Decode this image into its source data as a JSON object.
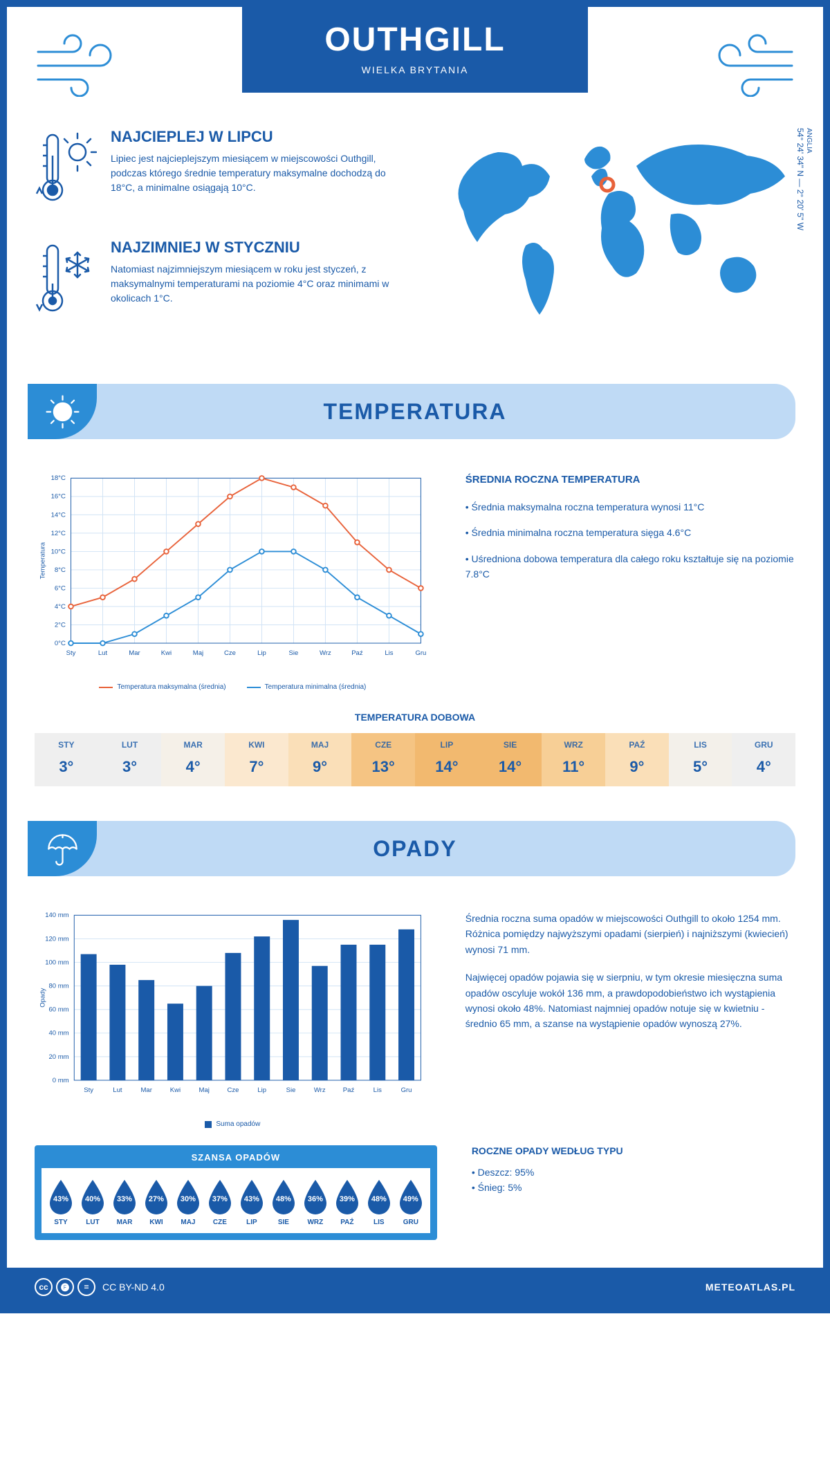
{
  "header": {
    "title": "OUTHGILL",
    "subtitle": "WIELKA BRYTANIA"
  },
  "coords": {
    "region": "ANGLIA",
    "text": "54° 24' 34\" N — 2° 20' 5\" W"
  },
  "blurbs": {
    "hot": {
      "title": "NAJCIEPLEJ W LIPCU",
      "text": "Lipiec jest najcieplejszym miesiącem w miejscowości Outhgill, podczas którego średnie temperatury maksymalne dochodzą do 18°C, a minimalne osiągają 10°C."
    },
    "cold": {
      "title": "NAJZIMNIEJ W STYCZNIU",
      "text": "Natomiast najzimniejszym miesiącem w roku jest styczeń, z maksymalnymi temperaturami na poziomie 4°C oraz minimami w okolicach 1°C."
    }
  },
  "sections": {
    "temperature": "TEMPERATURA",
    "opady": "OPADY"
  },
  "temp_chart": {
    "type": "line",
    "months": [
      "Sty",
      "Lut",
      "Mar",
      "Kwi",
      "Maj",
      "Cze",
      "Lip",
      "Sie",
      "Wrz",
      "Paź",
      "Lis",
      "Gru"
    ],
    "ylabel": "Temperatura",
    "ylim": [
      0,
      18
    ],
    "ytick_step": 2,
    "ytick_suffix": "°C",
    "series": {
      "max": {
        "label": "Temperatura maksymalna (średnia)",
        "color": "#e8623a",
        "values": [
          4,
          5,
          7,
          10,
          13,
          16,
          18,
          17,
          15,
          11,
          8,
          6
        ]
      },
      "min": {
        "label": "Temperatura minimalna (średnia)",
        "color": "#2c8dd6",
        "values": [
          0,
          0,
          1,
          3,
          5,
          8,
          10,
          10,
          8,
          5,
          3,
          1
        ]
      }
    },
    "grid_color": "#d0e3f5",
    "background": "#ffffff"
  },
  "temp_text": {
    "heading": "ŚREDNIA ROCZNA TEMPERATURA",
    "bullets": [
      "Średnia maksymalna roczna temperatura wynosi 11°C",
      "Średnia minimalna roczna temperatura sięga 4.6°C",
      "Uśredniona dobowa temperatura dla całego roku kształtuje się na poziomie 7.8°C"
    ]
  },
  "dobowa": {
    "title": "TEMPERATURA DOBOWA",
    "months": [
      "STY",
      "LUT",
      "MAR",
      "KWI",
      "MAJ",
      "CZE",
      "LIP",
      "SIE",
      "WRZ",
      "PAŹ",
      "LIS",
      "GRU"
    ],
    "values": [
      "3°",
      "3°",
      "4°",
      "7°",
      "9°",
      "13°",
      "14°",
      "14°",
      "11°",
      "9°",
      "5°",
      "4°"
    ],
    "colors": [
      "#efefef",
      "#efefef",
      "#f5f0e8",
      "#fbe8cf",
      "#fadfb8",
      "#f5c483",
      "#f2b96f",
      "#f2b96f",
      "#f7cf96",
      "#fadfb8",
      "#f3f0ea",
      "#efefef"
    ]
  },
  "opady_chart": {
    "type": "bar",
    "months": [
      "Sty",
      "Lut",
      "Mar",
      "Kwi",
      "Maj",
      "Cze",
      "Lip",
      "Sie",
      "Wrz",
      "Paź",
      "Lis",
      "Gru"
    ],
    "ylabel": "Opady",
    "series_label": "Suma opadów",
    "ylim": [
      0,
      140
    ],
    "ytick_step": 20,
    "ytick_suffix": " mm",
    "values": [
      107,
      98,
      85,
      65,
      80,
      108,
      122,
      136,
      97,
      115,
      115,
      128
    ],
    "bar_color": "#1a5aa8",
    "grid_color": "#d0e3f5",
    "background": "#ffffff"
  },
  "opady_text": {
    "p1": "Średnia roczna suma opadów w miejscowości Outhgill to około 1254 mm. Różnica pomiędzy najwyższymi opadami (sierpień) i najniższymi (kwiecień) wynosi 71 mm.",
    "p2": "Najwięcej opadów pojawia się w sierpniu, w tym okresie miesięczna suma opadów oscyluje wokół 136 mm, a prawdopodobieństwo ich wystąpienia wynosi około 48%. Natomiast najmniej opadów notuje się w kwietniu - średnio 65 mm, a szanse na wystąpienie opadów wynoszą 27%."
  },
  "szansa": {
    "title": "SZANSA OPADÓW",
    "months": [
      "STY",
      "LUT",
      "MAR",
      "KWI",
      "MAJ",
      "CZE",
      "LIP",
      "SIE",
      "WRZ",
      "PAŹ",
      "LIS",
      "GRU"
    ],
    "values": [
      "43%",
      "40%",
      "33%",
      "27%",
      "30%",
      "37%",
      "43%",
      "48%",
      "36%",
      "39%",
      "48%",
      "49%"
    ],
    "drop_color": "#1a5aa8"
  },
  "typu": {
    "heading": "ROCZNE OPADY WEDŁUG TYPU",
    "bullets": [
      "Deszcz: 95%",
      "Śnieg: 5%"
    ]
  },
  "footer": {
    "license": "CC BY-ND 4.0",
    "brand": "METEOATLAS.PL"
  },
  "colors": {
    "primary": "#1a5aa8",
    "accent": "#2c8dd6",
    "light": "#bfdaf5"
  }
}
